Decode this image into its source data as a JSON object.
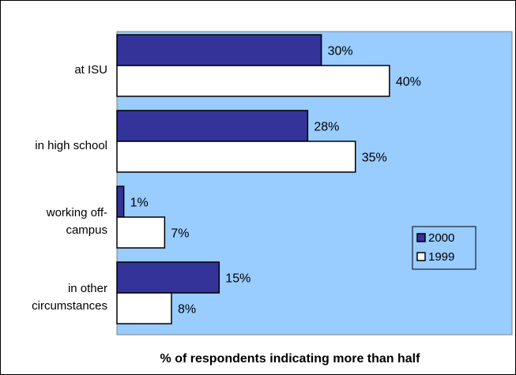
{
  "chart_data": {
    "type": "bar",
    "orientation": "horizontal",
    "categories": [
      [
        "at ISU"
      ],
      [
        "in high school"
      ],
      [
        "working off-",
        "campus"
      ],
      [
        "in other",
        "circumstances"
      ]
    ],
    "series": [
      {
        "name": "2000",
        "values": [
          30,
          28,
          1,
          15
        ],
        "labels": [
          "30%",
          "28%",
          "1%",
          "15%"
        ],
        "color": "#333399"
      },
      {
        "name": "1999",
        "values": [
          40,
          35,
          7,
          8
        ],
        "labels": [
          "40%",
          "35%",
          "7%",
          "8%"
        ],
        "color": "#ffffff"
      }
    ],
    "xlabel": "% of respondents indicating more than half",
    "xlim": [
      0,
      58
    ],
    "grid": false,
    "legend": "right",
    "plot_background": "#99ccff"
  }
}
